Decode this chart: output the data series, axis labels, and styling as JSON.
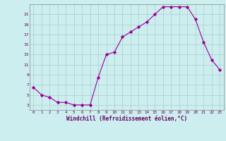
{
  "x": [
    0,
    1,
    2,
    3,
    4,
    5,
    6,
    7,
    8,
    9,
    10,
    11,
    12,
    13,
    14,
    15,
    16,
    17,
    18,
    19,
    20,
    21,
    22,
    23
  ],
  "y": [
    6.5,
    5.0,
    4.5,
    3.5,
    3.5,
    3.0,
    3.0,
    3.0,
    8.5,
    13.0,
    13.5,
    16.5,
    17.5,
    18.5,
    19.5,
    21.0,
    22.5,
    22.5,
    22.5,
    22.5,
    20.0,
    15.5,
    12.0,
    10.0
  ],
  "line_color": "#990099",
  "marker": "D",
  "markersize": 1.8,
  "linewidth": 0.8,
  "bg_color": "#cceeee",
  "grid_color": "#aacccc",
  "xlabel": "Windchill (Refroidissement éolien,°C)",
  "xlabel_color": "#660066",
  "tick_color": "#660066",
  "ylim": [
    2,
    23
  ],
  "xlim": [
    -0.5,
    23.5
  ],
  "yticks": [
    3,
    5,
    7,
    9,
    11,
    13,
    15,
    17,
    19,
    21
  ],
  "xticks": [
    0,
    1,
    2,
    3,
    4,
    5,
    6,
    7,
    8,
    9,
    10,
    11,
    12,
    13,
    14,
    15,
    16,
    17,
    18,
    19,
    20,
    21,
    22,
    23
  ]
}
